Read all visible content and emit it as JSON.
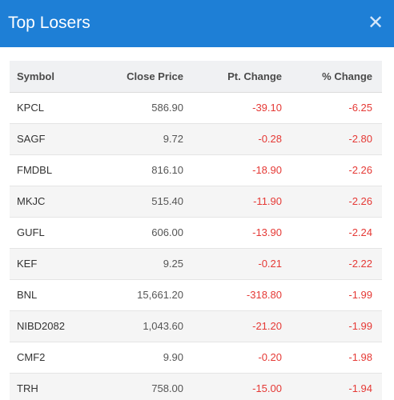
{
  "modal": {
    "title": "Top Losers",
    "close_icon": "close-icon"
  },
  "colors": {
    "header_bg": "#1e7fd6",
    "negative": "#e53935"
  },
  "table": {
    "columns": [
      "Symbol",
      "Close Price",
      "Pt. Change",
      "% Change"
    ],
    "rows": [
      {
        "symbol": "KPCL",
        "close": "586.90",
        "pt": "-39.10",
        "pct": "-6.25"
      },
      {
        "symbol": "SAGF",
        "close": "9.72",
        "pt": "-0.28",
        "pct": "-2.80"
      },
      {
        "symbol": "FMDBL",
        "close": "816.10",
        "pt": "-18.90",
        "pct": "-2.26"
      },
      {
        "symbol": "MKJC",
        "close": "515.40",
        "pt": "-11.90",
        "pct": "-2.26"
      },
      {
        "symbol": "GUFL",
        "close": "606.00",
        "pt": "-13.90",
        "pct": "-2.24"
      },
      {
        "symbol": "KEF",
        "close": "9.25",
        "pt": "-0.21",
        "pct": "-2.22"
      },
      {
        "symbol": "BNL",
        "close": "15,661.20",
        "pt": "-318.80",
        "pct": "-1.99"
      },
      {
        "symbol": "NIBD2082",
        "close": "1,043.60",
        "pt": "-21.20",
        "pct": "-1.99"
      },
      {
        "symbol": "CMF2",
        "close": "9.90",
        "pt": "-0.20",
        "pct": "-1.98"
      },
      {
        "symbol": "TRH",
        "close": "758.00",
        "pt": "-15.00",
        "pct": "-1.94"
      }
    ]
  }
}
